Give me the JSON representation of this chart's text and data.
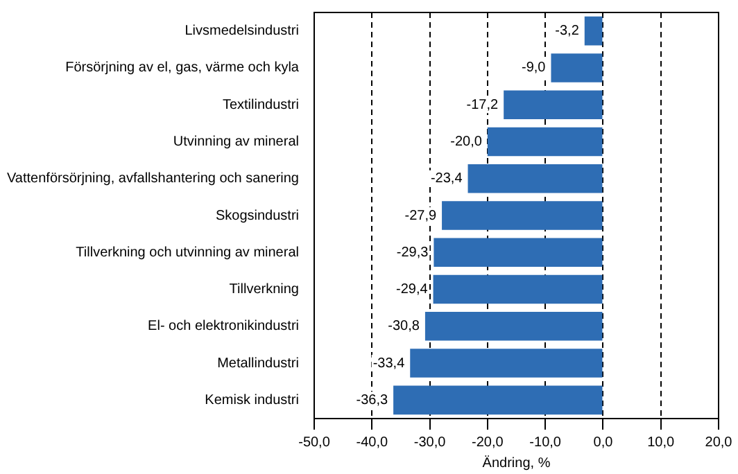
{
  "chart_data": {
    "type": "bar",
    "orientation": "horizontal",
    "xlabel": "Ändring, %",
    "categories": [
      "Livsmedelsindustri",
      "Försörjning av el, gas, värme och kyla",
      "Textilindustri",
      "Utvinning av mineral",
      "Vattenförsörjning, avfallshantering och sanering",
      "Skogsindustri",
      "Tillverkning och utvinning av mineral",
      "Tillverkning",
      "El- och elektronikindustri",
      "Metallindustri",
      "Kemisk industri"
    ],
    "values": [
      -3.2,
      -9.0,
      -17.2,
      -20.0,
      -23.4,
      -27.9,
      -29.3,
      -29.4,
      -30.8,
      -33.4,
      -36.3
    ],
    "value_labels": [
      "-3,2",
      "-9,0",
      "-17,2",
      "-20,0",
      "-23,4",
      "-27,9",
      "-29,3",
      "-29,4",
      "-30,8",
      "-33,4",
      "-36,3"
    ],
    "color": "#2e6db4",
    "xlim": [
      -50,
      20
    ],
    "xticks": [
      {
        "value": -50,
        "label": "-50,0"
      },
      {
        "value": -40,
        "label": "-40,0"
      },
      {
        "value": -30,
        "label": "-30,0"
      },
      {
        "value": -20,
        "label": "-20,0"
      },
      {
        "value": -10,
        "label": "-10,0"
      },
      {
        "value": 0,
        "label": "0,0"
      },
      {
        "value": 10,
        "label": "10,0"
      },
      {
        "value": 20,
        "label": "20,0"
      }
    ],
    "grid": "x",
    "legend": false
  }
}
